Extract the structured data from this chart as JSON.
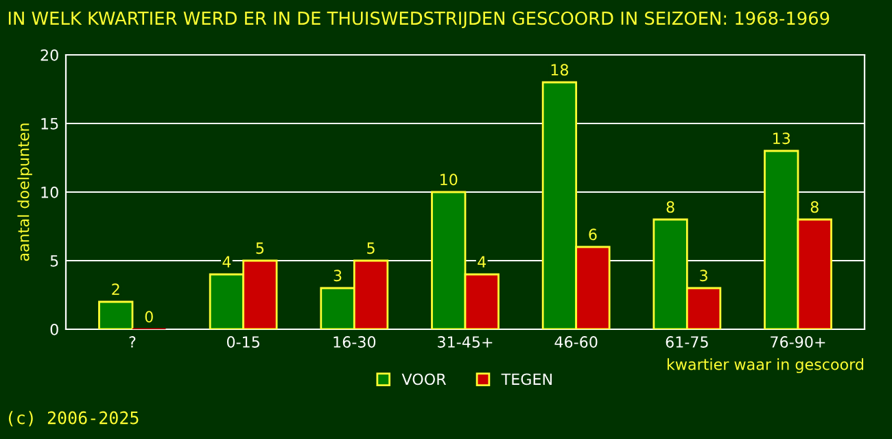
{
  "chart_data": {
    "type": "bar",
    "title": "IN WELK KWARTIER WERD ER IN DE THUISWEDSTRIJDEN GESCOORD IN SEIZOEN: 1968-1969",
    "categories": [
      "?",
      "0-15",
      "16-30",
      "31-45+",
      "46-60",
      "61-75",
      "76-90+"
    ],
    "series": [
      {
        "name": "VOOR",
        "color": "#008000",
        "values": [
          2,
          4,
          3,
          10,
          18,
          8,
          13
        ]
      },
      {
        "name": "TEGEN",
        "color": "#cc0000",
        "values": [
          0,
          5,
          5,
          4,
          6,
          3,
          8
        ]
      }
    ],
    "ylabel": "aantal doelpunten",
    "xlabel": "kwartier waar in gescoord",
    "ylim": [
      0,
      20
    ],
    "yticks": [
      0,
      5,
      10,
      15,
      20
    ],
    "grid": "y",
    "legend": "bottom",
    "data_labels": true,
    "annotations": [
      "(c) 2006-2025"
    ]
  }
}
